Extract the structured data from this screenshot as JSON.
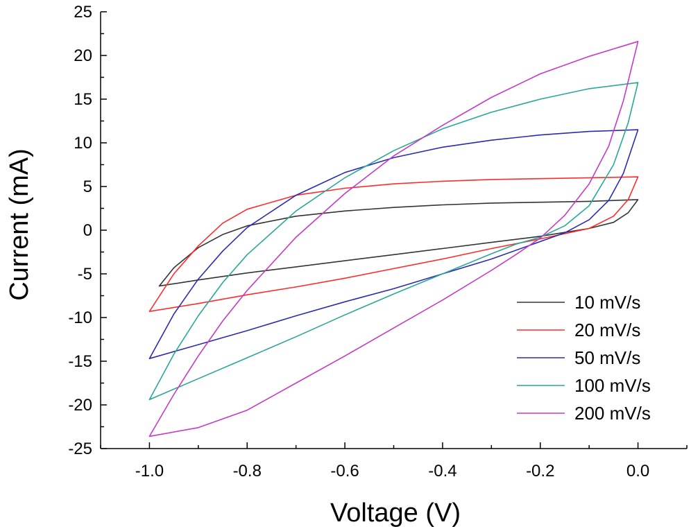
{
  "chart_data": {
    "type": "line",
    "title": "",
    "xlabel": "Voltage (V)",
    "ylabel": "Current (mA)",
    "xlim": [
      -1.1,
      0.1
    ],
    "ylim": [
      -25,
      25
    ],
    "xticks": [
      "-1.0",
      "-0.8",
      "-0.6",
      "-0.4",
      "-0.2",
      "0.0"
    ],
    "yticks": [
      "25",
      "20",
      "15",
      "10",
      "5",
      "0",
      "-5",
      "-10",
      "-15",
      "-20",
      "-25"
    ],
    "grid": false,
    "legend_position": "bottom-right",
    "series": [
      {
        "name": "10 mV/s",
        "color": "#333333",
        "forward": {
          "x": [
            -0.98,
            -0.95,
            -0.9,
            -0.85,
            -0.8,
            -0.7,
            -0.6,
            -0.5,
            -0.4,
            -0.3,
            -0.2,
            -0.1,
            0.0
          ],
          "y": [
            -6.4,
            -4.3,
            -2.0,
            -0.5,
            0.5,
            1.6,
            2.2,
            2.6,
            2.9,
            3.1,
            3.2,
            3.3,
            3.5
          ]
        },
        "reverse": {
          "x": [
            0.0,
            -0.02,
            -0.05,
            -0.1,
            -0.2,
            -0.3,
            -0.4,
            -0.5,
            -0.6,
            -0.7,
            -0.8,
            -0.9,
            -0.98
          ],
          "y": [
            3.5,
            2.0,
            0.9,
            0.2,
            -0.7,
            -1.4,
            -2.1,
            -2.8,
            -3.5,
            -4.2,
            -4.9,
            -5.7,
            -6.4
          ]
        }
      },
      {
        "name": "20 mV/s",
        "color": "#ff2a2a",
        "forward": {
          "x": [
            -1.0,
            -0.95,
            -0.9,
            -0.85,
            -0.8,
            -0.7,
            -0.6,
            -0.5,
            -0.4,
            -0.3,
            -0.2,
            -0.1,
            0.0
          ],
          "y": [
            -9.3,
            -5.0,
            -1.8,
            0.8,
            2.4,
            4.0,
            4.8,
            5.3,
            5.6,
            5.8,
            5.9,
            6.0,
            6.1
          ]
        },
        "reverse": {
          "x": [
            0.0,
            -0.02,
            -0.05,
            -0.1,
            -0.2,
            -0.3,
            -0.4,
            -0.5,
            -0.6,
            -0.7,
            -0.8,
            -0.9,
            -1.0
          ],
          "y": [
            6.1,
            3.5,
            1.6,
            0.2,
            -1.0,
            -2.1,
            -3.3,
            -4.4,
            -5.5,
            -6.5,
            -7.4,
            -8.4,
            -9.3
          ]
        }
      },
      {
        "name": "50 mV/s",
        "color": "#2a2ab0",
        "forward": {
          "x": [
            -1.0,
            -0.95,
            -0.9,
            -0.85,
            -0.8,
            -0.7,
            -0.6,
            -0.5,
            -0.4,
            -0.3,
            -0.2,
            -0.1,
            0.0
          ],
          "y": [
            -14.7,
            -9.6,
            -5.6,
            -2.4,
            0.3,
            4.0,
            6.6,
            8.3,
            9.5,
            10.3,
            10.9,
            11.3,
            11.5
          ]
        },
        "reverse": {
          "x": [
            0.0,
            -0.03,
            -0.06,
            -0.1,
            -0.15,
            -0.2,
            -0.3,
            -0.4,
            -0.5,
            -0.6,
            -0.7,
            -0.8,
            -0.9,
            -1.0
          ],
          "y": [
            11.5,
            6.5,
            3.4,
            1.2,
            -0.3,
            -1.3,
            -3.3,
            -5.0,
            -6.7,
            -8.2,
            -9.8,
            -11.5,
            -13.1,
            -14.7
          ]
        }
      },
      {
        "name": "100 mV/s",
        "color": "#2aa59a",
        "forward": {
          "x": [
            -1.0,
            -0.95,
            -0.9,
            -0.85,
            -0.8,
            -0.7,
            -0.6,
            -0.5,
            -0.4,
            -0.3,
            -0.2,
            -0.1,
            0.0
          ],
          "y": [
            -19.4,
            -14.2,
            -9.8,
            -6.0,
            -2.8,
            2.2,
            6.0,
            9.1,
            11.6,
            13.5,
            15.0,
            16.2,
            16.9
          ]
        },
        "reverse": {
          "x": [
            0.0,
            -0.02,
            -0.05,
            -0.1,
            -0.15,
            -0.2,
            -0.25,
            -0.3,
            -0.4,
            -0.5,
            -0.6,
            -0.7,
            -0.8,
            -0.9,
            -1.0
          ],
          "y": [
            16.9,
            12.3,
            7.5,
            2.8,
            0.5,
            -0.8,
            -1.6,
            -2.7,
            -5.0,
            -7.3,
            -9.7,
            -12.2,
            -14.6,
            -17.0,
            -19.4
          ]
        }
      },
      {
        "name": "200 mV/s",
        "color": "#c43ac4",
        "forward": {
          "x": [
            -1.0,
            -0.95,
            -0.9,
            -0.85,
            -0.8,
            -0.7,
            -0.6,
            -0.5,
            -0.4,
            -0.3,
            -0.2,
            -0.1,
            0.0
          ],
          "y": [
            -23.6,
            -18.8,
            -14.4,
            -10.4,
            -6.9,
            -0.8,
            4.2,
            8.5,
            12.0,
            15.2,
            17.9,
            19.9,
            21.6
          ]
        },
        "reverse": {
          "x": [
            0.0,
            -0.03,
            -0.06,
            -0.1,
            -0.15,
            -0.2,
            -0.25,
            -0.3,
            -0.4,
            -0.5,
            -0.6,
            -0.7,
            -0.8,
            -0.9,
            -1.0
          ],
          "y": [
            21.6,
            14.8,
            9.6,
            5.3,
            1.7,
            -0.9,
            -2.8,
            -4.6,
            -8.0,
            -11.2,
            -14.4,
            -17.5,
            -20.6,
            -22.6,
            -23.6
          ]
        }
      }
    ]
  }
}
